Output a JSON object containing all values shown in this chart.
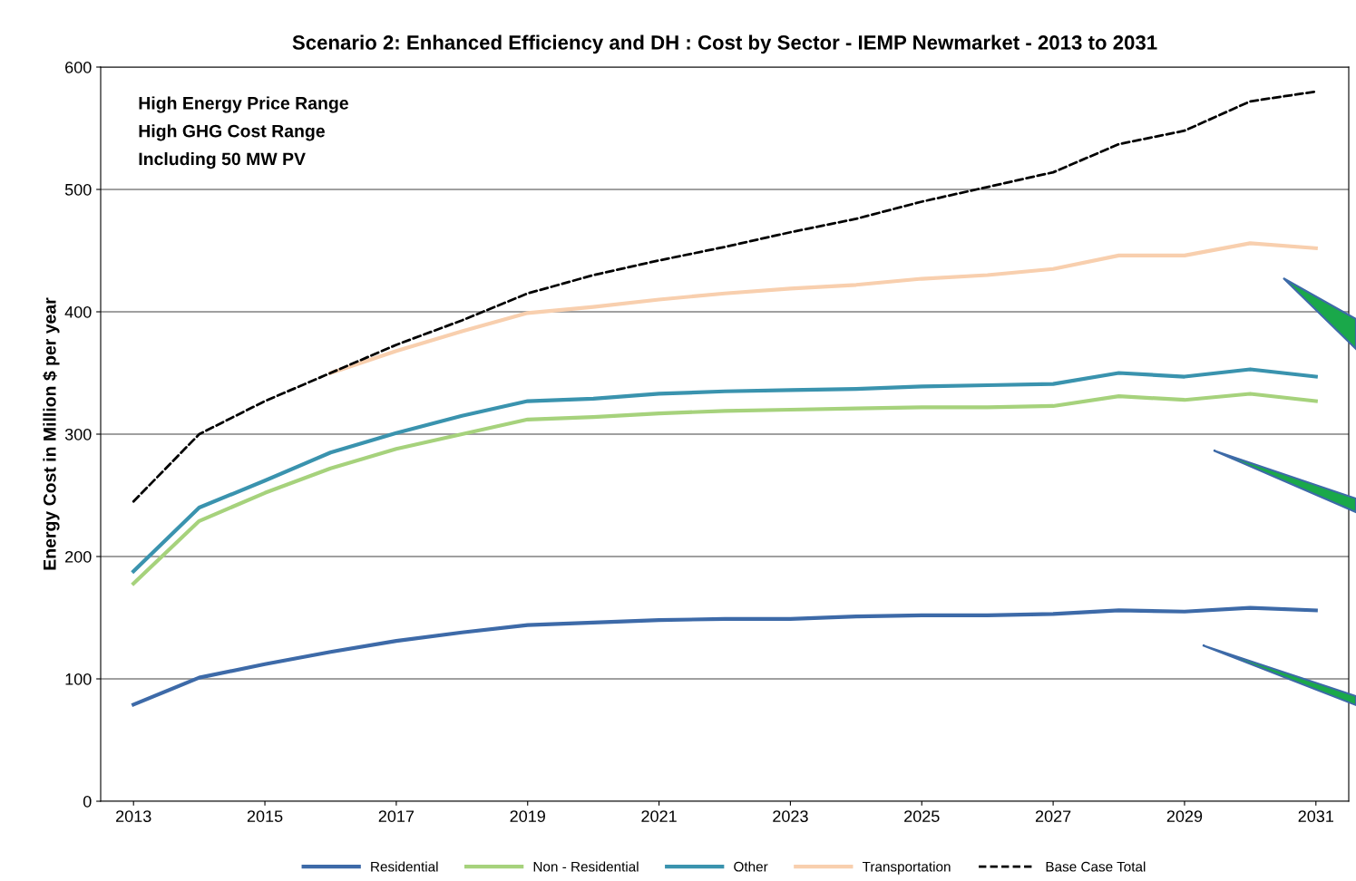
{
  "chart_data": {
    "type": "line",
    "title": "Scenario 2: Enhanced Efficiency and DH : Cost by Sector - IEMP Newmarket - 2013 to 2031",
    "ylabel": "Energy Cost in Million $ per year",
    "x": [
      2013,
      2014,
      2015,
      2016,
      2017,
      2018,
      2019,
      2020,
      2021,
      2022,
      2023,
      2024,
      2025,
      2026,
      2027,
      2028,
      2029,
      2030,
      2031
    ],
    "series": [
      {
        "name": "Residential",
        "color": "#3d6aa8",
        "values": [
          79,
          101,
          112,
          122,
          131,
          138,
          144,
          146,
          148,
          149,
          149,
          151,
          152,
          152,
          153,
          156,
          155,
          158,
          156
        ]
      },
      {
        "name": "Non - Residential",
        "color": "#a6d27c",
        "values": [
          178,
          229,
          252,
          272,
          288,
          300,
          312,
          314,
          317,
          319,
          320,
          321,
          322,
          322,
          323,
          331,
          328,
          333,
          327
        ]
      },
      {
        "name": "Other",
        "color": "#3a93ae",
        "values": [
          188,
          240,
          262,
          285,
          301,
          315,
          327,
          329,
          333,
          335,
          336,
          337,
          339,
          340,
          341,
          350,
          347,
          353,
          347
        ]
      },
      {
        "name": "Transportation",
        "color": "#f8cfae",
        "values": [
          null,
          null,
          null,
          350,
          368,
          384,
          399,
          404,
          410,
          415,
          419,
          422,
          427,
          430,
          435,
          446,
          446,
          456,
          452
        ]
      },
      {
        "name": "Base Case Total",
        "color": "#000000",
        "line_style": "dashed",
        "values": [
          245,
          300,
          327,
          350,
          373,
          393,
          415,
          430,
          442,
          453,
          465,
          476,
          490,
          502,
          514,
          537,
          548,
          572,
          580
        ]
      }
    ],
    "annotations": [
      "High Energy Price Range",
      "High GHG Cost Range",
      "Including 50 MW PV"
    ],
    "xlim": [
      2012.5,
      2031.5
    ],
    "xticks": [
      2013,
      2015,
      2017,
      2019,
      2021,
      2023,
      2025,
      2027,
      2029,
      2031
    ],
    "ylim": [
      0,
      600
    ],
    "yticks": [
      0,
      100,
      200,
      300,
      400,
      500,
      600
    ],
    "grid": "y",
    "legend": "bottom",
    "line_style": "solid",
    "marker": "none"
  }
}
